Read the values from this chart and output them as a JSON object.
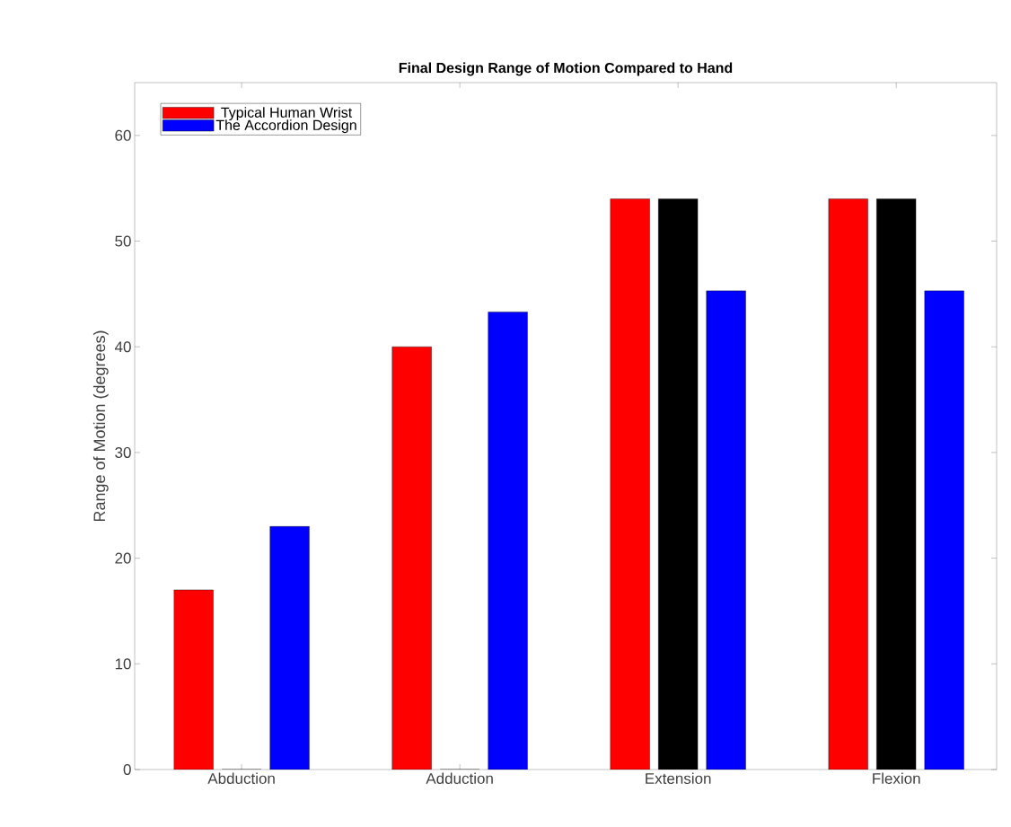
{
  "chart_data": {
    "type": "bar",
    "title": "Final Design Range of Motion Compared to Hand",
    "ylabel": "Range of Motion (degrees)",
    "categories": [
      "Abduction",
      "Adduction",
      "Extension",
      "Flexion"
    ],
    "series": [
      {
        "name": "Typical Human Wrist",
        "color": "#ff0000",
        "values": [
          17,
          40,
          54,
          54
        ]
      },
      {
        "color": "#000000",
        "values": [
          0,
          0,
          54,
          54
        ]
      },
      {
        "name": "The Accordion Design",
        "color": "#0000ff",
        "values": [
          23,
          43.3,
          45.3,
          45.3
        ]
      }
    ],
    "ylim": [
      0,
      65
    ],
    "yticks": [
      0,
      10,
      20,
      30,
      40,
      50,
      60
    ],
    "legend": "top left"
  }
}
